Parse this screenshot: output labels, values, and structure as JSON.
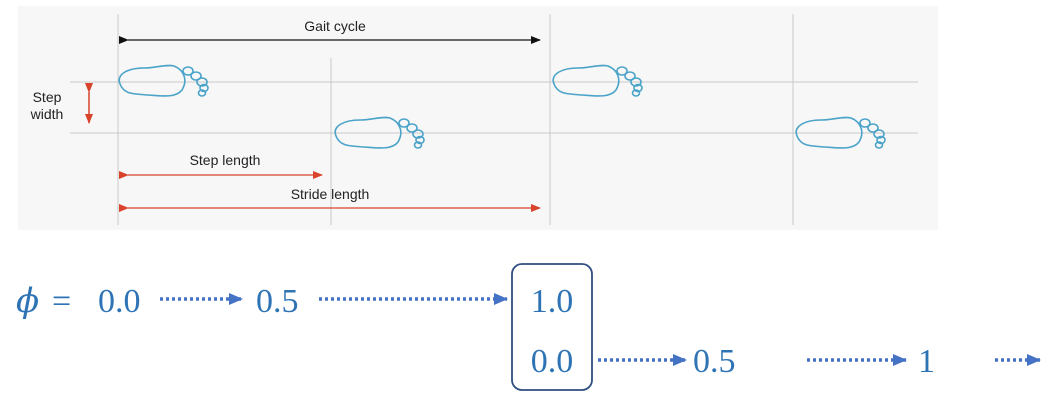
{
  "gait_diagram": {
    "gait_cycle_label": "Gait cycle",
    "step_width_label_line1": "Step",
    "step_width_label_line2": "width",
    "step_length_label": "Step length",
    "stride_length_label": "Stride length",
    "colors": {
      "background": "#f7f7f7",
      "grid": "#c8c8c8",
      "black_arrow": "#111111",
      "red_arrow": "#d9422b",
      "footprint": "#4aa3c8"
    }
  },
  "phase_sequence": {
    "symbol": "ϕ",
    "equals": "=",
    "row1": [
      "0.0",
      "0.5",
      "1.0"
    ],
    "row2": [
      "0.0",
      "0.5",
      "1"
    ],
    "color": "#2e74b5"
  }
}
